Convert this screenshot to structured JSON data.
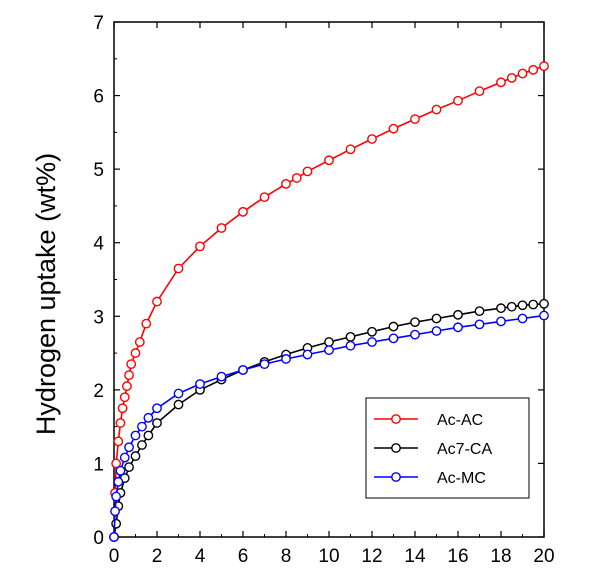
{
  "chart_data": {
    "type": "line",
    "title": "",
    "xlabel": "",
    "ylabel": "Hydrogen uptake (wt%)",
    "xlim": [
      0,
      20
    ],
    "ylim": [
      0,
      7
    ],
    "xticks": [
      0,
      2,
      4,
      6,
      8,
      10,
      12,
      14,
      16,
      18,
      20
    ],
    "yticks": [
      0,
      1,
      2,
      3,
      4,
      5,
      6,
      7
    ],
    "grid": false,
    "legend_position": "bottom-right",
    "series": [
      {
        "name": "Ac-AC",
        "color": "#ff0000",
        "marker": "open-circle",
        "x": [
          0,
          0.05,
          0.1,
          0.2,
          0.3,
          0.4,
          0.5,
          0.6,
          0.7,
          0.8,
          1.0,
          1.2,
          1.5,
          2,
          3,
          4,
          5,
          6,
          7,
          8,
          8.5,
          9,
          10,
          11,
          12,
          13,
          14,
          15,
          16,
          17,
          18,
          18.5,
          19,
          19.5,
          20
        ],
        "y": [
          0.0,
          0.6,
          1.0,
          1.3,
          1.55,
          1.75,
          1.9,
          2.05,
          2.2,
          2.35,
          2.5,
          2.65,
          2.9,
          3.2,
          3.65,
          3.95,
          4.2,
          4.42,
          4.62,
          4.8,
          4.88,
          4.97,
          5.12,
          5.27,
          5.41,
          5.55,
          5.68,
          5.81,
          5.93,
          6.06,
          6.18,
          6.24,
          6.3,
          6.35,
          6.4
        ]
      },
      {
        "name": "Ac7-CA",
        "color": "#000000",
        "marker": "open-circle",
        "x": [
          0,
          0.1,
          0.2,
          0.3,
          0.5,
          0.7,
          1.0,
          1.3,
          1.6,
          2,
          3,
          4,
          5,
          6,
          7,
          8,
          9,
          10,
          11,
          12,
          13,
          14,
          15,
          16,
          17,
          18,
          18.5,
          19,
          19.5,
          20
        ],
        "y": [
          0.0,
          0.18,
          0.42,
          0.6,
          0.8,
          0.95,
          1.1,
          1.25,
          1.38,
          1.55,
          1.8,
          2.0,
          2.14,
          2.27,
          2.38,
          2.48,
          2.57,
          2.65,
          2.72,
          2.79,
          2.86,
          2.92,
          2.97,
          3.02,
          3.07,
          3.11,
          3.13,
          3.15,
          3.16,
          3.17
        ]
      },
      {
        "name": "Ac-MC",
        "color": "#0000ff",
        "marker": "open-circle",
        "x": [
          0,
          0.05,
          0.1,
          0.2,
          0.3,
          0.5,
          0.7,
          1.0,
          1.3,
          1.6,
          2,
          3,
          4,
          5,
          6,
          7,
          8,
          9,
          10,
          11,
          12,
          13,
          14,
          15,
          16,
          17,
          18,
          19,
          20
        ],
        "y": [
          0.0,
          0.35,
          0.55,
          0.75,
          0.9,
          1.08,
          1.22,
          1.38,
          1.5,
          1.62,
          1.75,
          1.95,
          2.08,
          2.18,
          2.27,
          2.35,
          2.42,
          2.48,
          2.54,
          2.6,
          2.65,
          2.7,
          2.75,
          2.8,
          2.85,
          2.89,
          2.93,
          2.97,
          3.01
        ]
      }
    ]
  }
}
